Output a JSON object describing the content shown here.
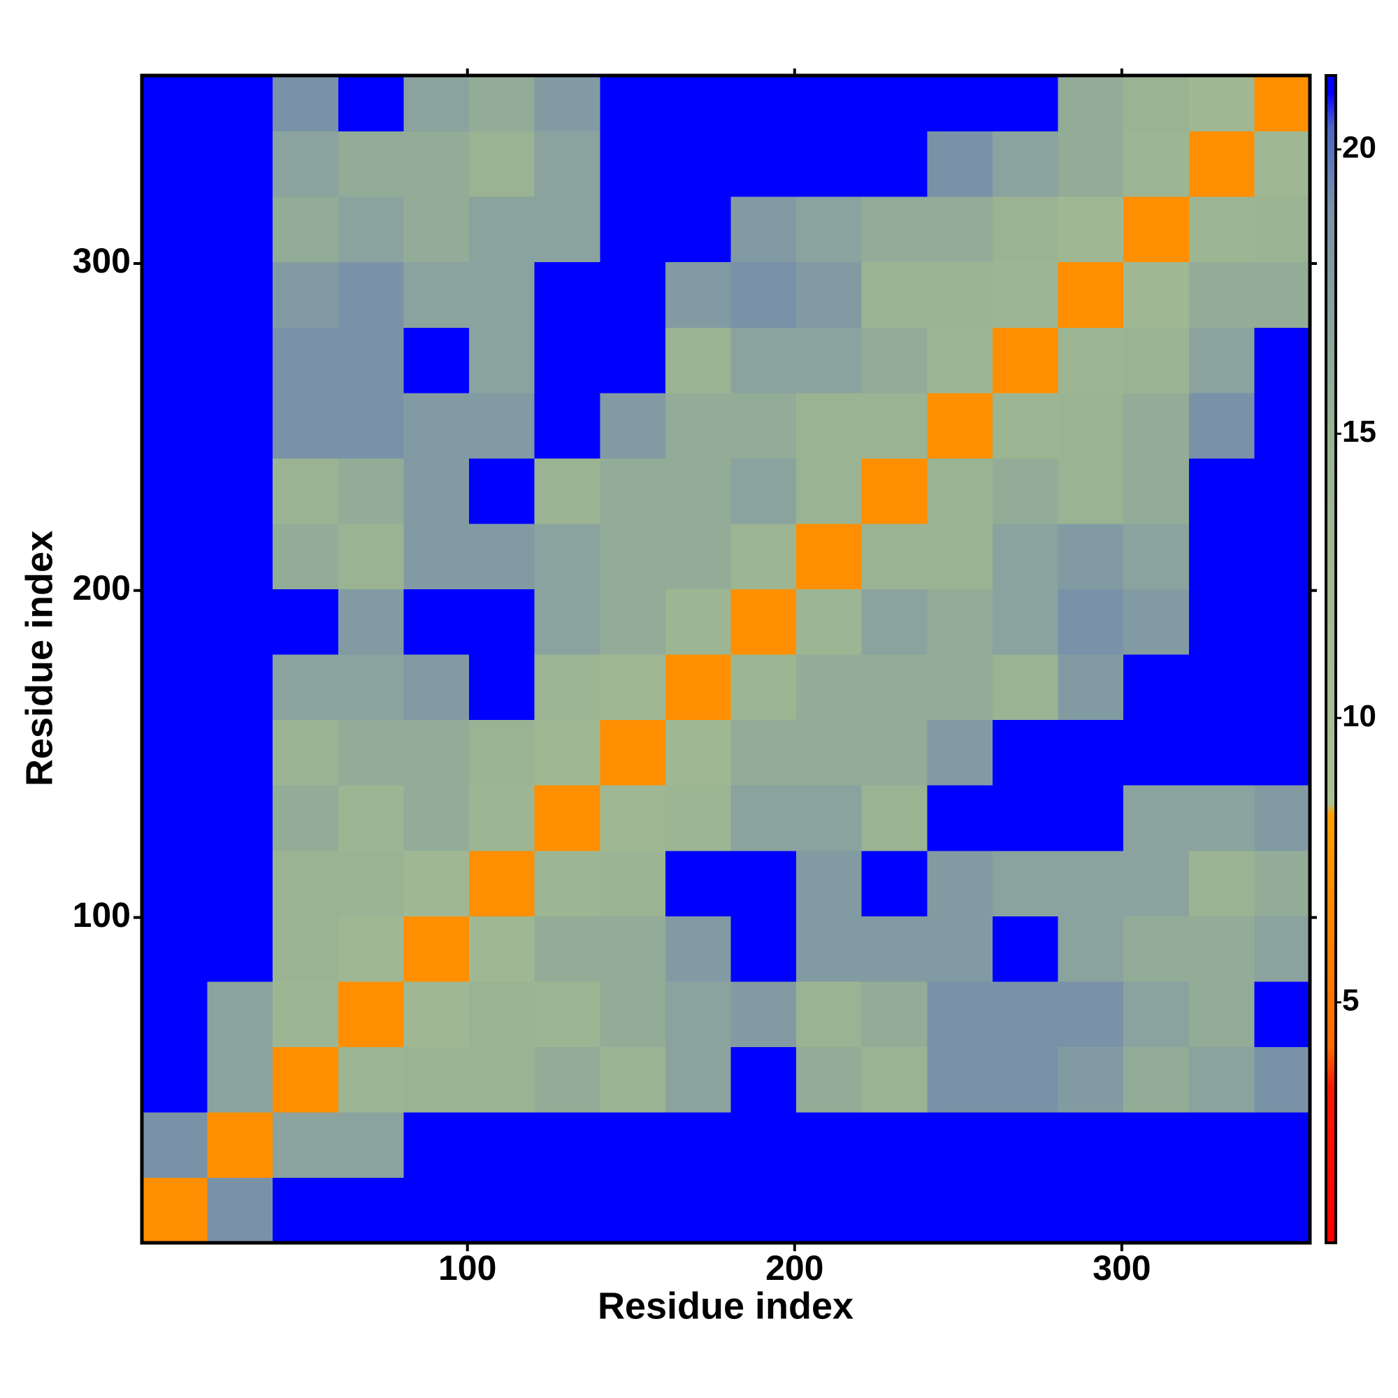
{
  "chart_data": {
    "type": "heatmap",
    "xlabel": "Residue index",
    "ylabel": "Residue index",
    "bins": [
      0.5,
      20.5,
      40.5,
      60.5,
      80.5,
      100.5,
      120.5,
      140.5,
      160.5,
      180.5,
      200.5,
      220.5,
      240.5,
      260.5,
      280.5,
      300.5,
      320.5,
      340.5,
      357.5
    ],
    "xlim": [
      0.5,
      357.5
    ],
    "ylim": [
      0.5,
      357.5
    ],
    "xticks": [
      100,
      200,
      300
    ],
    "yticks": [
      100,
      200,
      300
    ],
    "zlim": [
      0.77,
      21.3
    ],
    "zticks": [
      5,
      10,
      15,
      20
    ],
    "colorscale": [
      {
        "value": 0.77,
        "color": "#ff0000"
      },
      {
        "value": 3.5,
        "color": "#ff1a00"
      },
      {
        "value": 4.2,
        "color": "#ff6a00"
      },
      {
        "value": 8.3,
        "color": "#ffa000"
      },
      {
        "value": 8.5,
        "color": "#a9c293"
      },
      {
        "value": 15,
        "color": "#9ab493"
      },
      {
        "value": 19,
        "color": "#7a92a8"
      },
      {
        "value": 20.4,
        "color": "#4a66c4"
      },
      {
        "value": 21,
        "color": "#0000ff"
      },
      {
        "value": 21.3,
        "color": "#0000ff"
      }
    ],
    "z": [
      [
        7,
        19,
        21,
        21,
        21,
        21,
        21,
        21,
        21,
        21,
        21,
        21,
        21,
        21,
        21,
        21,
        21,
        21
      ],
      [
        19,
        7,
        17,
        17,
        21,
        21,
        21,
        21,
        21,
        21,
        21,
        21,
        21,
        21,
        21,
        21,
        21,
        21
      ],
      [
        21,
        17,
        7,
        14,
        15,
        15,
        16,
        15,
        17,
        21,
        16,
        15,
        19,
        19,
        18,
        16,
        17,
        19
      ],
      [
        21,
        17,
        14,
        7,
        13,
        15,
        14,
        16,
        17,
        18,
        15,
        16,
        19,
        19,
        19,
        17,
        16,
        21
      ],
      [
        21,
        21,
        15,
        13,
        7,
        13,
        16,
        16,
        18,
        21,
        18,
        18,
        18,
        21,
        17,
        16,
        16,
        17
      ],
      [
        21,
        21,
        15,
        15,
        13,
        7,
        14,
        15,
        21,
        21,
        18,
        21,
        18,
        17,
        17,
        17,
        15,
        16
      ],
      [
        21,
        21,
        16,
        14,
        16,
        14,
        7,
        13,
        14,
        17,
        17,
        15,
        21,
        21,
        21,
        17,
        17,
        18
      ],
      [
        21,
        21,
        15,
        16,
        16,
        15,
        13,
        7,
        13,
        16,
        16,
        16,
        18,
        21,
        21,
        21,
        21,
        21
      ],
      [
        21,
        21,
        17,
        17,
        18,
        21,
        14,
        13,
        7,
        14,
        16,
        16,
        16,
        15,
        18,
        21,
        21,
        21
      ],
      [
        21,
        21,
        21,
        18,
        21,
        21,
        17,
        16,
        14,
        7,
        14,
        17,
        16,
        17,
        19,
        18,
        21,
        21
      ],
      [
        21,
        21,
        16,
        15,
        18,
        18,
        17,
        16,
        16,
        14,
        7,
        15,
        15,
        17,
        18,
        17,
        21,
        21
      ],
      [
        21,
        21,
        15,
        16,
        18,
        21,
        15,
        16,
        16,
        17,
        15,
        7,
        15,
        16,
        15,
        16,
        21,
        21
      ],
      [
        21,
        21,
        19,
        19,
        18,
        18,
        21,
        18,
        16,
        16,
        15,
        15,
        7,
        14,
        15,
        16,
        19,
        21
      ],
      [
        21,
        21,
        19,
        19,
        21,
        17,
        21,
        21,
        15,
        17,
        17,
        16,
        14,
        7,
        14,
        15,
        17,
        21
      ],
      [
        21,
        21,
        18,
        19,
        17,
        17,
        21,
        21,
        18,
        19,
        18,
        15,
        15,
        14,
        7,
        13,
        16,
        16
      ],
      [
        21,
        21,
        16,
        17,
        16,
        17,
        17,
        21,
        21,
        18,
        17,
        16,
        16,
        15,
        13,
        7,
        14,
        15
      ],
      [
        21,
        21,
        17,
        16,
        16,
        15,
        17,
        21,
        21,
        21,
        21,
        21,
        19,
        17,
        16,
        14,
        7,
        13
      ],
      [
        21,
        21,
        19,
        21,
        17,
        16,
        18,
        21,
        21,
        21,
        21,
        21,
        21,
        21,
        16,
        15,
        13,
        7
      ]
    ]
  }
}
